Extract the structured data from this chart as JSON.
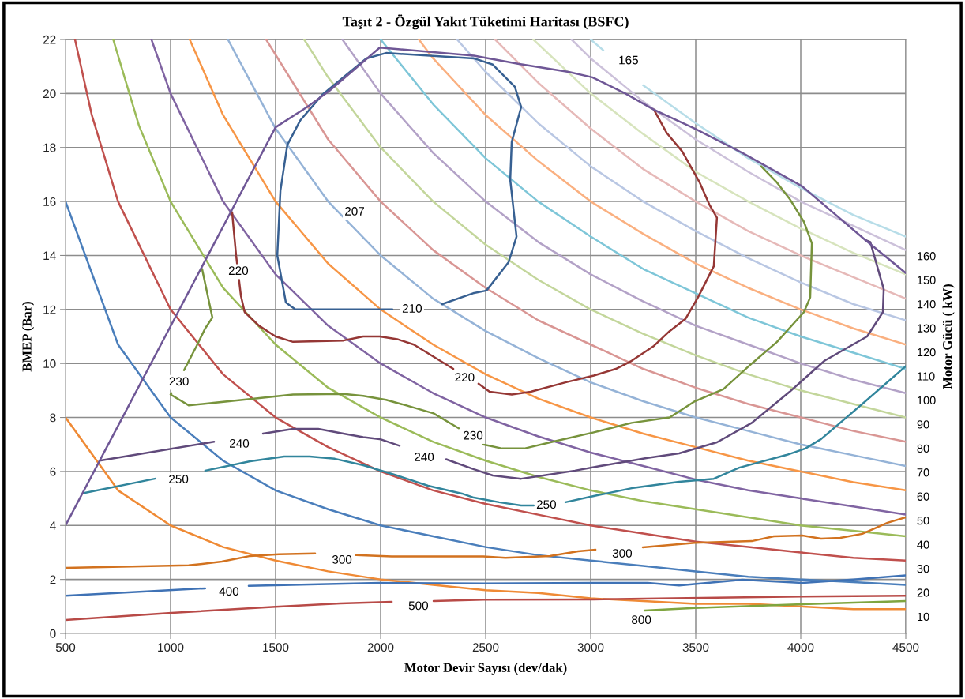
{
  "chart_data": {
    "type": "line",
    "title": "Taşıt 2 - Özgül Yakıt Tüketimi Haritası (BSFC)",
    "xlabel": "Motor Devir Sayısı (dev/dak)",
    "ylabel": "BMEP (Bar)",
    "y2label": "Motor Gücü ( kW)",
    "xlim": [
      500,
      4500
    ],
    "xticks": [
      500,
      1000,
      1500,
      2000,
      2500,
      3000,
      3500,
      4000,
      4500
    ],
    "ylim": [
      0,
      22
    ],
    "yticks": [
      0,
      2,
      4,
      6,
      8,
      10,
      12,
      14,
      16,
      18,
      20,
      22
    ],
    "y2lim": [
      3,
      250
    ],
    "y2ticks": [
      10,
      20,
      30,
      40,
      50,
      60,
      70,
      80,
      90,
      100,
      110,
      120,
      130,
      140,
      150,
      160
    ],
    "grid": true,
    "series": [
      {
        "color": "#ef8a35",
        "x": [
          500,
          750,
          1000,
          1250,
          1500,
          1750,
          2000,
          2250,
          2500,
          2750,
          3000,
          3250,
          3500,
          3750,
          4000,
          4250,
          4500
        ],
        "values": [
          8.0,
          5.3,
          4.0,
          3.2,
          2.7,
          2.3,
          2.0,
          1.8,
          1.6,
          1.5,
          1.3,
          1.2,
          1.1,
          1.1,
          1.0,
          0.9,
          0.9
        ]
      },
      {
        "color": "#4a7ebb",
        "x": [
          500,
          750,
          1000,
          1250,
          1500,
          1750,
          2000,
          2250,
          2500,
          2750,
          3000,
          3250,
          3500,
          3750,
          4000,
          4250,
          4500
        ],
        "values": [
          16.0,
          10.7,
          8.0,
          6.4,
          5.3,
          4.6,
          4.0,
          3.6,
          3.2,
          2.9,
          2.7,
          2.5,
          2.3,
          2.1,
          2.0,
          1.9,
          1.8
        ]
      },
      {
        "color": "#c0504d",
        "x": [
          545,
          625,
          750,
          1000,
          1250,
          1500,
          1750,
          2000,
          2250,
          2500,
          2750,
          3000,
          3250,
          3500,
          3750,
          4000,
          4250,
          4500
        ],
        "values": [
          22.0,
          19.2,
          16.0,
          12.0,
          9.6,
          8.0,
          6.9,
          6.0,
          5.3,
          4.8,
          4.4,
          4.0,
          3.7,
          3.4,
          3.2,
          3.0,
          2.8,
          2.7
        ]
      },
      {
        "color": "#9bbb59",
        "x": [
          727,
          850,
          1000,
          1250,
          1500,
          1750,
          2000,
          2250,
          2500,
          2750,
          3000,
          3250,
          3500,
          3750,
          4000,
          4250,
          4500
        ],
        "values": [
          22.0,
          18.8,
          16.0,
          12.8,
          10.7,
          9.1,
          8.0,
          7.1,
          6.4,
          5.8,
          5.3,
          4.9,
          4.6,
          4.3,
          4.0,
          3.8,
          3.6
        ]
      },
      {
        "color": "#8064a2",
        "x": [
          909,
          1000,
          1250,
          1500,
          1750,
          2000,
          2250,
          2500,
          2750,
          3000,
          3250,
          3500,
          3750,
          4000,
          4250,
          4500
        ],
        "values": [
          22.0,
          20.0,
          16.0,
          13.3,
          11.4,
          10.0,
          8.9,
          8.0,
          7.3,
          6.7,
          6.2,
          5.7,
          5.3,
          5.0,
          4.7,
          4.4
        ]
      },
      {
        "color": "#f79646",
        "x": [
          1091,
          1250,
          1500,
          1750,
          2000,
          2250,
          2500,
          2750,
          3000,
          3250,
          3500,
          3750,
          4000,
          4250,
          4500
        ],
        "values": [
          22.0,
          19.2,
          16.0,
          13.7,
          12.0,
          10.7,
          9.6,
          8.7,
          8.0,
          7.4,
          6.9,
          6.4,
          6.0,
          5.6,
          5.3
        ]
      },
      {
        "color": "#95b3d7",
        "x": [
          1273,
          1500,
          1750,
          2000,
          2250,
          2500,
          2750,
          3000,
          3250,
          3500,
          3750,
          4000,
          4250,
          4500
        ],
        "values": [
          22.0,
          18.7,
          16.0,
          14.0,
          12.4,
          11.2,
          10.2,
          9.3,
          8.6,
          8.0,
          7.5,
          7.0,
          6.6,
          6.2
        ]
      },
      {
        "color": "#d99694",
        "x": [
          1455,
          1750,
          2000,
          2250,
          2500,
          2750,
          3000,
          3250,
          3500,
          3750,
          4000,
          4250,
          4500
        ],
        "values": [
          22.0,
          18.3,
          16.0,
          14.2,
          12.8,
          11.6,
          10.7,
          9.8,
          9.1,
          8.5,
          8.0,
          7.5,
          7.1
        ]
      },
      {
        "color": "#c3d69b",
        "x": [
          1636,
          1750,
          2000,
          2250,
          2500,
          2750,
          3000,
          3250,
          3500,
          3750,
          4000,
          4250,
          4500
        ],
        "values": [
          22.0,
          20.6,
          18.0,
          16.0,
          14.4,
          13.1,
          12.0,
          11.1,
          10.3,
          9.6,
          9.0,
          8.5,
          8.0
        ]
      },
      {
        "color": "#b3a2c7",
        "x": [
          1818,
          2000,
          2250,
          2500,
          2750,
          3000,
          3250,
          3500,
          3750,
          4000,
          4250,
          4500
        ],
        "values": [
          22.0,
          20.0,
          17.8,
          16.0,
          14.5,
          13.3,
          12.3,
          11.4,
          10.7,
          10.0,
          9.4,
          8.9
        ]
      },
      {
        "color": "#7ec6d8",
        "x": [
          2000,
          2250,
          2500,
          2750,
          3000,
          3250,
          3500,
          3750,
          4000,
          4250,
          4500
        ],
        "values": [
          22.0,
          19.6,
          17.6,
          16.0,
          14.7,
          13.5,
          12.6,
          11.7,
          11.0,
          10.4,
          9.8
        ]
      },
      {
        "color": "#fab080",
        "x": [
          2182,
          2250,
          2500,
          2750,
          3000,
          3250,
          3500,
          3750,
          4000,
          4250,
          4500
        ],
        "values": [
          22.0,
          21.3,
          19.2,
          17.5,
          16.0,
          14.8,
          13.7,
          12.8,
          12.0,
          11.3,
          10.7
        ]
      },
      {
        "color": "#b9c7e3",
        "x": [
          2364,
          2500,
          2750,
          3000,
          3250,
          3500,
          3750,
          4000,
          4250,
          4500
        ],
        "values": [
          22.0,
          20.8,
          18.9,
          17.3,
          16.0,
          14.9,
          13.9,
          13.0,
          12.2,
          11.6
        ]
      },
      {
        "color": "#e6b9b8",
        "x": [
          2545,
          2750,
          3000,
          3250,
          3500,
          3750,
          4000,
          4250,
          4500
        ],
        "values": [
          22.0,
          20.4,
          18.7,
          17.2,
          16.0,
          14.9,
          14.0,
          13.2,
          12.4
        ]
      },
      {
        "color": "#d7e4bd",
        "x": [
          2727,
          3000,
          3250,
          3500,
          3750,
          4000,
          4250,
          4500
        ],
        "values": [
          22.0,
          20.0,
          18.5,
          17.1,
          16.0,
          15.0,
          14.1,
          13.3
        ]
      },
      {
        "color": "#ccc1da",
        "x": [
          2909,
          3000,
          3250,
          3500,
          3750,
          4000,
          4250,
          4500
        ],
        "values": [
          22.0,
          21.3,
          19.7,
          18.3,
          17.1,
          16.0,
          15.1,
          14.2
        ]
      },
      {
        "color": "#b7dde8",
        "x": [
          3000,
          3060,
          3120,
          3250,
          3500,
          3750,
          4000,
          4250,
          4500
        ],
        "values": [
          22.0,
          21.6,
          null,
          20.3,
          18.9,
          17.6,
          16.5,
          15.5,
          14.7
        ]
      },
      {
        "color": "#376092",
        "x": [
          2293,
          2440,
          2504,
          2609,
          2647,
          2617,
          2624,
          2669,
          2639,
          2534,
          2444,
          2026,
          1932,
          1838,
          1722,
          1617,
          1556,
          1523,
          1508,
          1549,
          1594,
          2056
        ],
        "values": [
          12.2,
          12.6,
          12.7,
          13.75,
          14.7,
          16.8,
          18.2,
          19.5,
          20.25,
          21.07,
          21.3,
          21.5,
          21.3,
          20.7,
          19.95,
          19.0,
          18.1,
          16.4,
          14.0,
          12.26,
          12.0,
          12.0
        ]
      },
      {
        "color": "#953735",
        "x": [
          1293,
          1312,
          1335,
          1353,
          1421,
          1500,
          1583,
          1823,
          1917,
          1996,
          2079,
          2158,
          2346,
          2400,
          2466,
          2519,
          2624,
          2714,
          2880,
          3015,
          3120,
          3195,
          3301,
          3376,
          3451,
          3511,
          3586,
          3601,
          3564,
          3519,
          3436,
          3361,
          3301
        ],
        "values": [
          15.6,
          14.0,
          12.5,
          11.9,
          11.4,
          11.0,
          10.8,
          10.85,
          11.0,
          11.0,
          10.9,
          10.7,
          9.8,
          null,
          9.25,
          8.95,
          8.85,
          8.95,
          9.3,
          9.55,
          9.8,
          10.1,
          10.65,
          11.2,
          11.65,
          12.45,
          13.6,
          15.4,
          15.9,
          16.7,
          17.85,
          18.55,
          19.4
        ]
      },
      {
        "color": "#77933c",
        "x": [
          1150,
          1199,
          1165,
          1124,
          1064,
          1030,
          1004,
          1000,
          1086,
          1406,
          1583,
          1823,
          1917,
          2026,
          2120,
          2252,
          2372,
          2430,
          2489,
          2579,
          2684,
          2820,
          3015,
          3195,
          3376,
          3496,
          3632,
          3767,
          3887,
          4015,
          4045,
          4053,
          4015,
          3947,
          3887,
          3812
        ],
        "values": [
          13.5,
          11.7,
          11.3,
          10.65,
          9.75,
          null,
          8.9,
          8.85,
          8.45,
          8.7,
          8.85,
          8.87,
          8.8,
          8.65,
          8.45,
          8.15,
          7.6,
          null,
          7.0,
          6.85,
          6.85,
          7.1,
          7.45,
          7.8,
          8.0,
          8.6,
          9.05,
          10.0,
          10.8,
          11.9,
          12.45,
          14.45,
          15.25,
          16.1,
          16.7,
          17.3
        ]
      },
      {
        "color": "#604a7b",
        "x": [
          662,
          1207,
          1320,
          1440,
          1583,
          1703,
          1823,
          1917,
          1996,
          2090,
          2200,
          2312,
          2444,
          2534,
          2669,
          2774,
          2925,
          3045,
          3271,
          3421,
          3601,
          3767,
          3947,
          4113,
          4316,
          4391,
          4395,
          4331,
          4308
        ],
        "values": [
          6.4,
          7.1,
          null,
          7.4,
          7.58,
          7.58,
          7.4,
          7.27,
          7.2,
          6.95,
          null,
          6.45,
          6.08,
          5.85,
          5.73,
          5.85,
          6.03,
          6.2,
          6.5,
          6.67,
          7.08,
          7.8,
          8.95,
          10.1,
          11.0,
          11.9,
          12.75,
          14.5,
          14.57
        ]
      },
      {
        "color": "#31859c",
        "x": [
          587,
          925,
          1040,
          1165,
          1379,
          1541,
          1662,
          1782,
          1917,
          2090,
          2226,
          2387,
          2444,
          2564,
          2669,
          2729,
          2790,
          2880,
          3015,
          3195,
          3421,
          3586,
          3707,
          3932,
          4022,
          4097,
          4308,
          4500
        ],
        "values": [
          5.2,
          5.73,
          null,
          6.03,
          6.38,
          6.55,
          6.55,
          6.47,
          6.23,
          5.82,
          5.47,
          5.18,
          5.03,
          4.86,
          4.74,
          4.74,
          null,
          4.86,
          5.09,
          5.38,
          5.62,
          5.73,
          6.14,
          6.61,
          6.85,
          7.2,
          8.6,
          9.9
        ]
      },
      {
        "color": "#d2721f",
        "x": [
          500,
          1086,
          1244,
          1379,
          1515,
          1688,
          1800,
          1883,
          2053,
          2489,
          2594,
          2805,
          2940,
          3023,
          3150,
          3248,
          3496,
          3767,
          3872,
          4007,
          4097,
          4188,
          4293,
          4413,
          4500
        ],
        "values": [
          2.43,
          2.52,
          2.66,
          2.87,
          2.93,
          2.96,
          null,
          2.9,
          2.85,
          2.85,
          2.8,
          2.87,
          3.04,
          3.1,
          null,
          3.19,
          3.36,
          3.42,
          3.6,
          3.63,
          3.51,
          3.54,
          3.69,
          4.1,
          4.3
        ]
      },
      {
        "color": "#3f72b5",
        "x": [
          500,
          1165,
          1280,
          1372,
          1996,
          2489,
          3015,
          3271,
          3421,
          3722,
          4007,
          4250,
          4500
        ],
        "values": [
          1.4,
          1.67,
          null,
          1.76,
          1.87,
          1.85,
          1.87,
          1.87,
          1.78,
          1.99,
          1.87,
          2.0,
          2.15
        ]
      },
      {
        "color": "#b84a47",
        "x": [
          500,
          1004,
          1500,
          1808,
          2053,
          2180,
          2252,
          2489,
          3015,
          4007,
          4500
        ],
        "values": [
          0.5,
          0.76,
          0.99,
          1.11,
          1.17,
          null,
          1.2,
          1.25,
          1.26,
          1.37,
          1.4
        ]
      },
      {
        "color": "#7fa53f",
        "x": [
          3256,
          3496,
          4007,
          4500
        ],
        "values": [
          0.85,
          0.94,
          1.08,
          1.2
        ]
      },
      {
        "color": "#6f5796",
        "x": [
          500,
          1286,
          1500,
          1650,
          1756,
          1891,
          1996,
          2444,
          2654,
          2895,
          3008,
          3165,
          3301,
          3496,
          3722,
          4007,
          4113,
          4308,
          4500
        ],
        "values": [
          4.0,
          15.6,
          18.75,
          19.5,
          20.1,
          21.0,
          21.7,
          21.4,
          21.1,
          20.8,
          20.6,
          20.0,
          19.4,
          18.7,
          17.8,
          16.56,
          15.86,
          14.57,
          13.35
        ]
      }
    ],
    "annotations": [
      {
        "text": "165",
        "x": 3180,
        "y": 21.2
      },
      {
        "text": "207",
        "x": 1876,
        "y": 15.6
      },
      {
        "text": "210",
        "x": 2150,
        "y": 12.0
      },
      {
        "text": "220",
        "x": 1323,
        "y": 13.4
      },
      {
        "text": "220",
        "x": 2400,
        "y": 9.45
      },
      {
        "text": "230",
        "x": 1040,
        "y": 9.3
      },
      {
        "text": "230",
        "x": 2440,
        "y": 7.3
      },
      {
        "text": "240",
        "x": 1327,
        "y": 7.0
      },
      {
        "text": "240",
        "x": 2207,
        "y": 6.5
      },
      {
        "text": "250",
        "x": 1038,
        "y": 5.68
      },
      {
        "text": "250",
        "x": 2789,
        "y": 4.74
      },
      {
        "text": "300",
        "x": 1816,
        "y": 2.7
      },
      {
        "text": "300",
        "x": 3150,
        "y": 2.93
      },
      {
        "text": "400",
        "x": 1278,
        "y": 1.52
      },
      {
        "text": "500",
        "x": 2180,
        "y": 0.99
      },
      {
        "text": "800",
        "x": 3241,
        "y": 0.47
      }
    ]
  }
}
